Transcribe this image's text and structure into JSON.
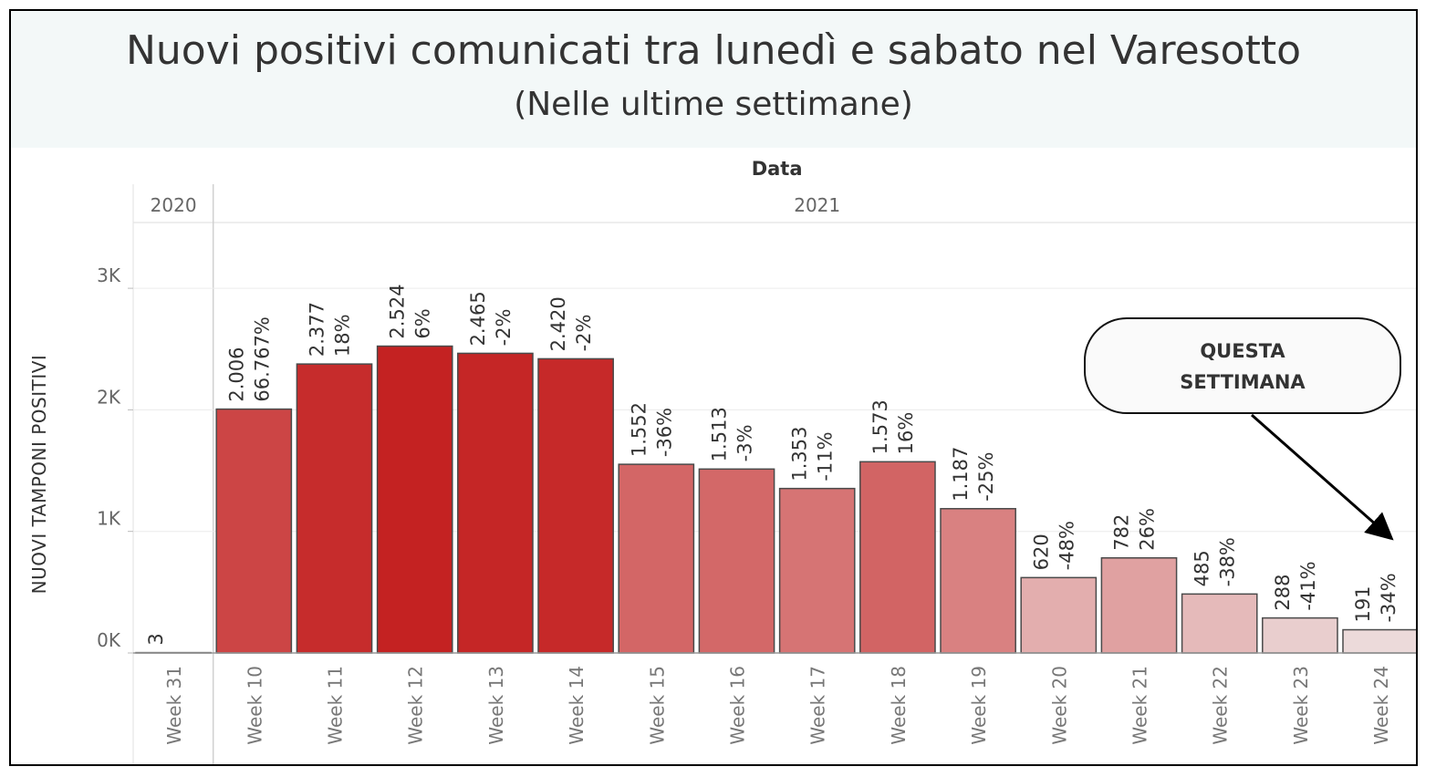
{
  "chart_data": {
    "type": "bar",
    "title": "Nuovi positivi comunicati tra lunedì e sabato nel Varesotto",
    "subtitle": "(Nelle ultime settimane)",
    "top_axis_label": "Data",
    "ylabel": "NUOVI TAMPONI POSITIVI",
    "ylim": [
      0,
      3600
    ],
    "yticks": [
      {
        "value": 0,
        "label": "0K"
      },
      {
        "value": 1000,
        "label": "1K"
      },
      {
        "value": 2000,
        "label": "2K"
      },
      {
        "value": 3000,
        "label": "3K"
      }
    ],
    "grid": true,
    "years": [
      {
        "label": "2020",
        "from": 0,
        "to": 0
      },
      {
        "label": "2021",
        "from": 1,
        "to": 15
      }
    ],
    "categories": [
      "Week 31",
      "Week 10",
      "Week 11",
      "Week 12",
      "Week 13",
      "Week 14",
      "Week 15",
      "Week 16",
      "Week 17",
      "Week 18",
      "Week 19",
      "Week 20",
      "Week 21",
      "Week 22",
      "Week 23",
      "Week 24"
    ],
    "values": [
      3,
      2006,
      2377,
      2524,
      2465,
      2420,
      1552,
      1513,
      1353,
      1573,
      1187,
      620,
      782,
      485,
      288,
      191
    ],
    "value_labels": [
      "3",
      "2.006",
      "2.377",
      "2.524",
      "2.465",
      "2.420",
      "1.552",
      "1.513",
      "1.353",
      "1.573",
      "1.187",
      "620",
      "782",
      "485",
      "288",
      "191"
    ],
    "pct_labels": [
      "",
      "66.767%",
      "18%",
      "6%",
      "-2%",
      "-2%",
      "-36%",
      "-3%",
      "-11%",
      "16%",
      "-25%",
      "-48%",
      "26%",
      "-38%",
      "-41%",
      "-34%"
    ],
    "annotation": {
      "lines": [
        "QUESTA",
        "SETTIMANA"
      ],
      "target_category": "Week 24"
    }
  }
}
